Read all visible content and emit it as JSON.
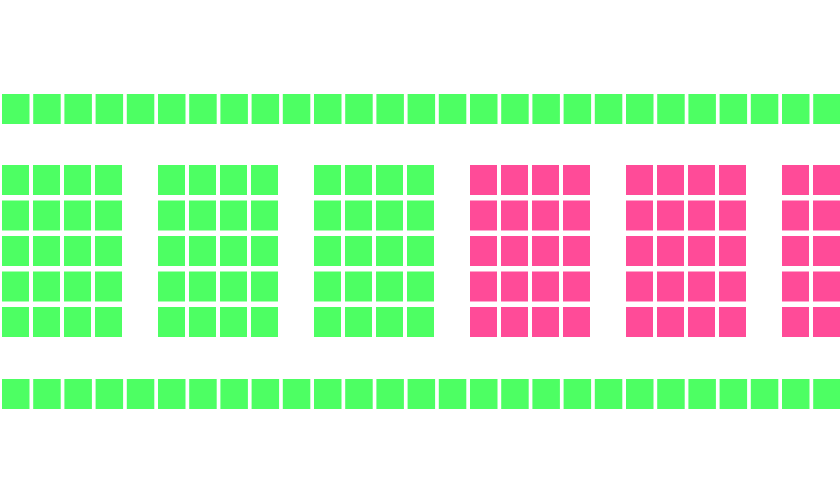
{
  "strips": [
    {
      "color": "#4dff63"
    },
    {
      "color": "#4dff63"
    }
  ],
  "blocks": [
    {
      "color": "#4dff63"
    },
    {
      "color": "#4dff63"
    },
    {
      "color": "#4dff63"
    },
    {
      "color": "#ff4b98"
    },
    {
      "color": "#ff4b98"
    },
    {
      "color": "#ff4b98"
    }
  ]
}
